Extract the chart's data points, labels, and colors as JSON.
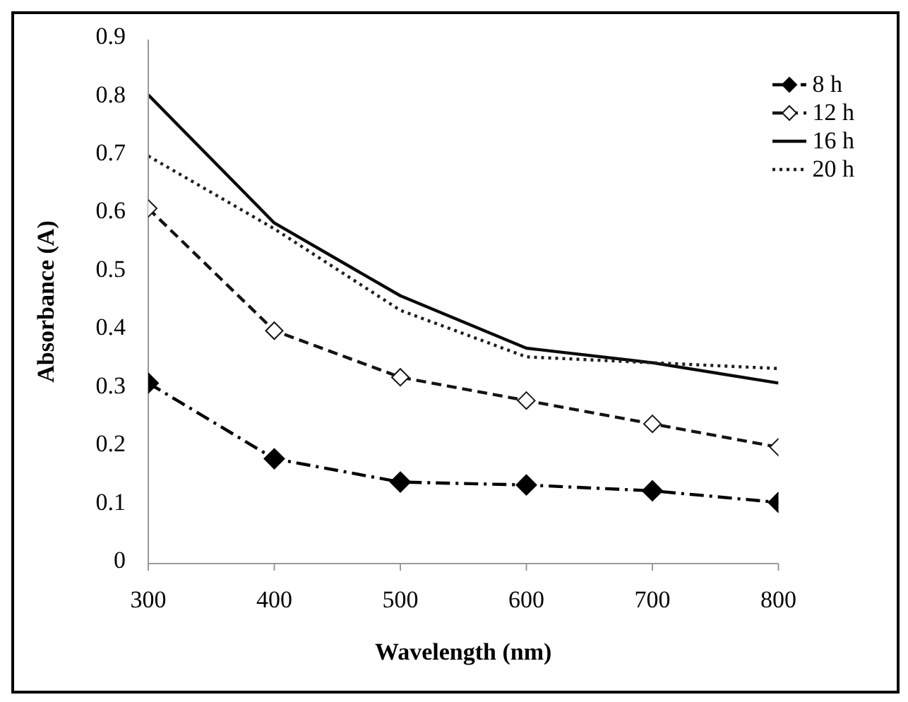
{
  "chart_data": {
    "type": "line",
    "xlabel": "Wavelength (nm)",
    "ylabel": "Absorbance (A)",
    "x": [
      300,
      400,
      500,
      600,
      700,
      800
    ],
    "xlim": [
      300,
      800
    ],
    "xticks": [
      300,
      400,
      500,
      600,
      700,
      800
    ],
    "ylim": [
      0,
      0.9
    ],
    "yticks": [
      0,
      0.1,
      0.2,
      0.3,
      0.4,
      0.5,
      0.6,
      0.7,
      0.8,
      0.9
    ],
    "grid": false,
    "legend": "top right",
    "series": [
      {
        "name": "8 h",
        "color": "#000000",
        "marker": "diamond",
        "line_style": "dashdot",
        "values": [
          0.31,
          0.18,
          0.14,
          0.135,
          0.125,
          0.105
        ]
      },
      {
        "name": "12 h",
        "color": "#141414",
        "marker": "diamond-open",
        "line_style": "dashed",
        "values": [
          0.61,
          0.4,
          0.32,
          0.28,
          0.24,
          0.2
        ]
      },
      {
        "name": "16 h",
        "color": "#0a0a0a",
        "marker": "none",
        "line_style": "solid",
        "values": [
          0.805,
          0.585,
          0.46,
          0.37,
          0.345,
          0.31
        ]
      },
      {
        "name": "20 h",
        "color": "#1e1e1e",
        "marker": "none",
        "line_style": "dotted",
        "values": [
          0.7,
          0.575,
          0.435,
          0.355,
          0.345,
          0.335
        ]
      }
    ]
  }
}
